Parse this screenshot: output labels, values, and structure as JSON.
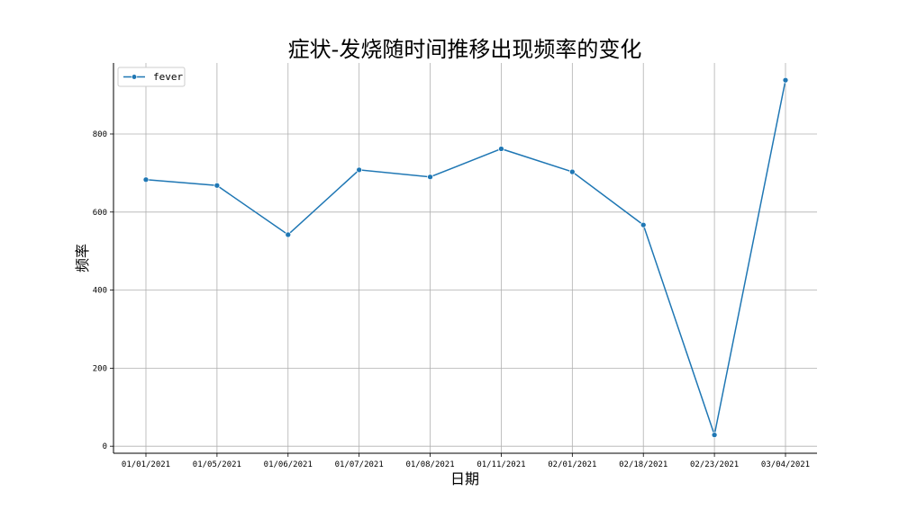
{
  "chart_data": {
    "type": "line",
    "title": "症状-发烧随时间推移出现频率的变化",
    "xlabel": "日期",
    "ylabel": "频率",
    "categories": [
      "01/01/2021",
      "01/05/2021",
      "01/06/2021",
      "01/07/2021",
      "01/08/2021",
      "01/11/2021",
      "02/01/2021",
      "02/18/2021",
      "02/23/2021",
      "03/04/2021"
    ],
    "series": [
      {
        "name": "fever",
        "values": [
          683,
          668,
          542,
          708,
          690,
          762,
          703,
          567,
          29,
          938
        ],
        "color": "#1f77b4"
      }
    ],
    "ylim": [
      -18,
      982
    ],
    "yticks": [
      0,
      200,
      400,
      600,
      800
    ],
    "grid": true,
    "legend": "top-left"
  }
}
